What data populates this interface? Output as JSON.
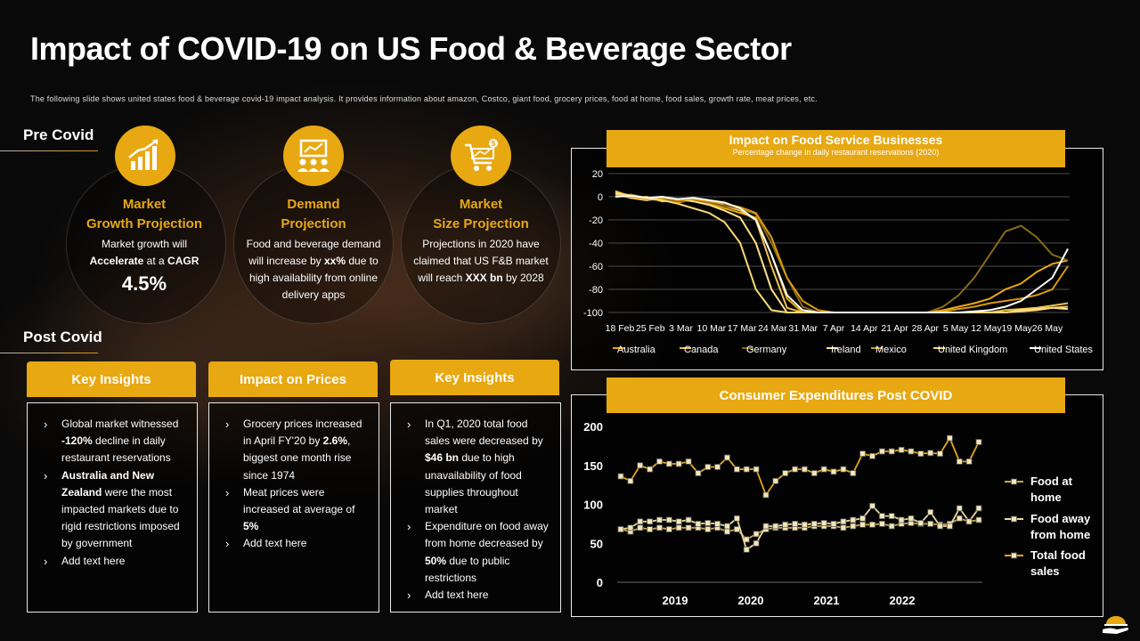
{
  "title": "Impact of COVID-19 on US Food & Beverage Sector",
  "subtitle": "The following slide shows united states food & beverage covid-19 impact analysis. It provides information about amazon, Costco, giant food, grocery prices, food at home, food sales, growth rate, meat prices, etc.",
  "colors": {
    "accent": "#E8A812",
    "background": "#090909"
  },
  "pre_covid": {
    "label": "Pre Covid",
    "cards": [
      {
        "icon": "growth-chart-icon",
        "title_l1": "Market",
        "title_l2": "Growth Projection",
        "text_l1": "Market growth will",
        "text_bold": "Accelerate",
        "text_rest": " at a ",
        "text_bold2": "CAGR",
        "big": "4.5%"
      },
      {
        "icon": "presentation-audience-icon",
        "title_l1": "Demand",
        "title_l2": "Projection",
        "text_pre": "Food and beverage demand will increase by ",
        "text_bold": "xx%",
        "text_post": " due to high availability from online delivery apps"
      },
      {
        "icon": "shopping-cart-dollar-icon",
        "title_l1": "Market",
        "title_l2": "Size Projection",
        "text_pre": "Projections in 2020 have claimed that US F&B market will reach ",
        "text_bold": "XXX bn",
        "text_post": " by 2028"
      }
    ]
  },
  "post_covid": {
    "label": "Post Covid",
    "boxes": [
      {
        "heading": "Key Insights",
        "items": [
          {
            "pre": "Global market witnessed ",
            "bold": "-120%",
            "post": " decline in daily restaurant reservations"
          },
          {
            "pre": "",
            "bold": "Australia and New Zealand",
            "post": " were the most impacted markets due to rigid restrictions imposed by government"
          },
          {
            "pre": "Add text here",
            "bold": "",
            "post": ""
          }
        ]
      },
      {
        "heading": "Impact on Prices",
        "items": [
          {
            "pre": "Grocery prices increased in April FY'20 by ",
            "bold": "2.6%",
            "post": ", biggest one month rise since 1974"
          },
          {
            "pre": "Meat prices were increased at average of ",
            "bold": "5%",
            "post": ""
          },
          {
            "pre": "Add text here",
            "bold": "",
            "post": ""
          }
        ]
      },
      {
        "heading": "Key Insights",
        "items": [
          {
            "pre": "In Q1, 2020 total food sales were decreased by ",
            "bold": "$46 bn",
            "post": " due to high unavailability of food supplies throughout market"
          },
          {
            "pre": "Expenditure on food away from home decreased by ",
            "bold": "50%",
            "post": " due to public restrictions"
          },
          {
            "pre": "Add text here",
            "bold": "",
            "post": ""
          }
        ]
      }
    ]
  },
  "chart_data": [
    {
      "type": "line",
      "title": "Impact on Food Service Businesses",
      "subtitle": "Percentage change in daily restaurant reservations (2020)",
      "xlabel": "",
      "ylabel": "",
      "ylim": [
        -100,
        20
      ],
      "yticks": [
        20,
        0,
        -20,
        -40,
        -60,
        -80,
        -100
      ],
      "x_tick_labels": [
        "18 Feb",
        "25 Feb",
        "3 Mar",
        "10 Mar",
        "17 Mar",
        "24 Mar",
        "31 Mar",
        "7 Apr",
        "14 Apr",
        "21 Apr",
        "28 Apr",
        "5 May",
        "12 May",
        "19 May",
        "26 May"
      ],
      "grid": true,
      "legend_position": "bottom",
      "series": [
        {
          "name": "Australia",
          "color": "#E8A812",
          "values": [
            5,
            0,
            -2,
            -3,
            -5,
            -2,
            -6,
            -10,
            -14,
            -18,
            -50,
            -88,
            -100,
            -100,
            -100,
            -100,
            -100,
            -100,
            -100,
            -100,
            -100,
            -98,
            -95,
            -92,
            -88,
            -80,
            -75,
            -65,
            -58,
            -55
          ]
        },
        {
          "name": "Canada",
          "color": "#F2C34A",
          "values": [
            2,
            -1,
            0,
            -4,
            -3,
            -1,
            -3,
            -8,
            -12,
            -20,
            -60,
            -96,
            -100,
            -100,
            -100,
            -100,
            -100,
            -100,
            -100,
            -100,
            -100,
            -100,
            -100,
            -100,
            -100,
            -98,
            -97,
            -96,
            -94,
            -92
          ]
        },
        {
          "name": "Germany",
          "color": "#8A6A1A",
          "values": [
            0,
            2,
            -1,
            -2,
            -4,
            -3,
            -5,
            -8,
            -10,
            -15,
            -40,
            -70,
            -95,
            -100,
            -100,
            -100,
            -100,
            -100,
            -100,
            -100,
            -100,
            -95,
            -85,
            -70,
            -50,
            -30,
            -25,
            -35,
            -50,
            -55
          ]
        },
        {
          "name": "Ireland",
          "color": "#FFE28A",
          "values": [
            3,
            -1,
            -3,
            -1,
            -2,
            -4,
            -7,
            -12,
            -18,
            -40,
            -80,
            -100,
            -100,
            -100,
            -100,
            -100,
            -100,
            -100,
            -100,
            -100,
            -100,
            -100,
            -100,
            -100,
            -100,
            -100,
            -98,
            -97,
            -96,
            -97
          ]
        },
        {
          "name": "Mexico",
          "color": "#D99A10",
          "values": [
            1,
            0,
            -2,
            -1,
            -3,
            -2,
            -4,
            -6,
            -9,
            -14,
            -35,
            -70,
            -90,
            -98,
            -100,
            -100,
            -100,
            -100,
            -100,
            -100,
            -100,
            -99,
            -97,
            -95,
            -92,
            -90,
            -88,
            -85,
            -80,
            -60
          ]
        },
        {
          "name": "United Kingdom",
          "color": "#F7D77A",
          "values": [
            4,
            1,
            -1,
            -3,
            -6,
            -10,
            -14,
            -22,
            -40,
            -80,
            -98,
            -100,
            -100,
            -100,
            -100,
            -100,
            -100,
            -100,
            -100,
            -100,
            -100,
            -100,
            -100,
            -100,
            -100,
            -100,
            -99,
            -98,
            -96,
            -95
          ]
        },
        {
          "name": "United States",
          "color": "#FFFFFF",
          "values": [
            0,
            1,
            -1,
            0,
            -2,
            -1,
            -3,
            -5,
            -10,
            -20,
            -50,
            -85,
            -98,
            -100,
            -100,
            -100,
            -100,
            -100,
            -100,
            -100,
            -100,
            -100,
            -100,
            -99,
            -98,
            -95,
            -90,
            -80,
            -70,
            -45
          ]
        }
      ]
    },
    {
      "type": "line",
      "title": "Consumer Expenditures Post COVID",
      "xlabel": "",
      "ylabel": "",
      "ylim": [
        0,
        200
      ],
      "yticks": [
        200,
        150,
        100,
        50,
        0
      ],
      "x_tick_labels": [
        "2019",
        "2020",
        "2021",
        "2022"
      ],
      "grid": false,
      "legend_position": "right",
      "series": [
        {
          "name": "Food at home",
          "color": "#C9A84A",
          "values": [
            68,
            65,
            70,
            68,
            70,
            68,
            70,
            70,
            70,
            68,
            70,
            65,
            68,
            55,
            62,
            68,
            70,
            70,
            70,
            70,
            72,
            72,
            72,
            70,
            72,
            74,
            74,
            75,
            72,
            75,
            76,
            75,
            75,
            74,
            75,
            82,
            78,
            80
          ]
        },
        {
          "name": "Food away from home",
          "color": "#E8D8A0",
          "values": [
            68,
            70,
            78,
            78,
            80,
            80,
            78,
            80,
            75,
            76,
            75,
            72,
            82,
            42,
            50,
            72,
            72,
            74,
            75,
            74,
            75,
            76,
            75,
            78,
            80,
            82,
            98,
            85,
            85,
            80,
            82,
            76,
            90,
            72,
            72,
            95,
            78,
            95
          ]
        },
        {
          "name": "Total food sales",
          "color": "#E8A812",
          "values": [
            136,
            130,
            150,
            145,
            155,
            152,
            152,
            155,
            140,
            148,
            148,
            160,
            145,
            145,
            145,
            112,
            130,
            140,
            145,
            145,
            140,
            145,
            142,
            145,
            140,
            165,
            162,
            168,
            168,
            170,
            168,
            165,
            166,
            165,
            185,
            155,
            155,
            180
          ]
        }
      ]
    }
  ]
}
